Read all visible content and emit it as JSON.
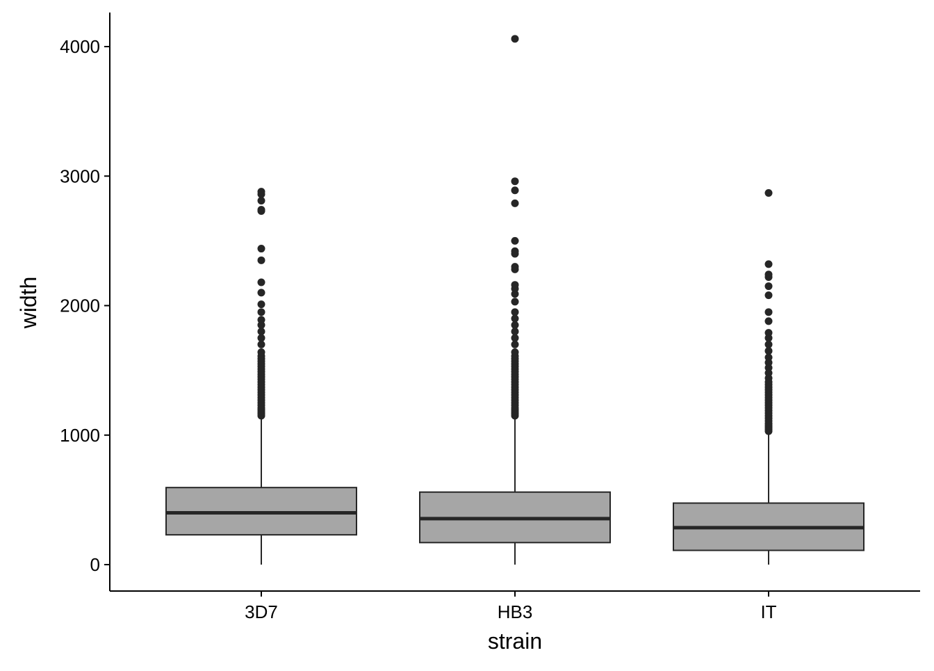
{
  "chart_data": {
    "type": "boxplot",
    "title": "",
    "xlabel": "strain",
    "ylabel": "width",
    "categories": [
      "3D7",
      "HB3",
      "IT"
    ],
    "ylim": [
      -200,
      4200
    ],
    "yticks": [
      0,
      1000,
      2000,
      3000,
      4000
    ],
    "grid": false,
    "legend": "none",
    "colors": {
      "box_fill": "#a6a6a6",
      "box_stroke": "#262626",
      "median": "#262626",
      "outlier": "#262626",
      "axis": "#000000"
    },
    "boxes": [
      {
        "category": "3D7",
        "min": 0,
        "q1": 230,
        "median": 400,
        "q3": 595,
        "max": 1140,
        "outliers": [
          1150,
          1165,
          1180,
          1195,
          1210,
          1230,
          1250,
          1270,
          1290,
          1310,
          1330,
          1350,
          1370,
          1390,
          1410,
          1430,
          1450,
          1470,
          1490,
          1510,
          1530,
          1550,
          1570,
          1590,
          1610,
          1640,
          1700,
          1750,
          1800,
          1850,
          1890,
          1950,
          2010,
          2100,
          2180,
          2350,
          2440,
          2730,
          2740,
          2810,
          2860,
          2880
        ]
      },
      {
        "category": "HB3",
        "min": 0,
        "q1": 170,
        "median": 355,
        "q3": 560,
        "max": 1135,
        "outliers": [
          1150,
          1165,
          1180,
          1195,
          1210,
          1230,
          1250,
          1270,
          1290,
          1310,
          1330,
          1350,
          1370,
          1390,
          1410,
          1430,
          1450,
          1470,
          1490,
          1510,
          1530,
          1550,
          1570,
          1590,
          1610,
          1640,
          1700,
          1750,
          1800,
          1850,
          1900,
          1950,
          2030,
          2090,
          2130,
          2160,
          2280,
          2300,
          2400,
          2420,
          2500,
          2790,
          2890,
          2960,
          4060
        ]
      },
      {
        "category": "IT",
        "min": 0,
        "q1": 110,
        "median": 285,
        "q3": 475,
        "max": 1020,
        "outliers": [
          1030,
          1045,
          1060,
          1075,
          1090,
          1110,
          1130,
          1150,
          1170,
          1190,
          1210,
          1230,
          1250,
          1270,
          1290,
          1310,
          1330,
          1350,
          1370,
          1390,
          1410,
          1440,
          1480,
          1520,
          1560,
          1600,
          1650,
          1700,
          1750,
          1790,
          1880,
          1950,
          2080,
          2150,
          2220,
          2240,
          2320,
          2870
        ]
      }
    ]
  }
}
